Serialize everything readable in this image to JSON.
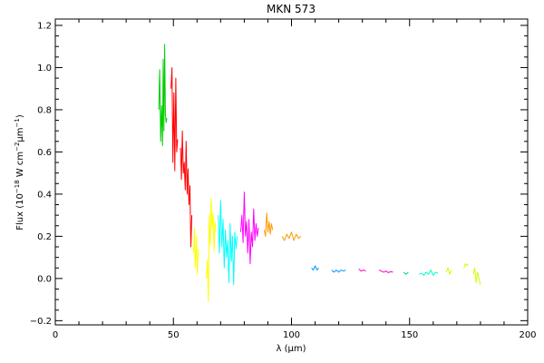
{
  "chart_data": {
    "type": "line",
    "title": "MKN 573",
    "xlabel": "λ (μm)",
    "ylabel": {
      "prefix": "Flux (10",
      "exp1": "−18",
      "mid": " W cm",
      "exp2": "−2",
      "mid2": "μm",
      "exp3": "−1",
      "suffix": ")"
    },
    "xlim": [
      0,
      200
    ],
    "ylim": [
      -0.22,
      1.23
    ],
    "xticks": [
      0,
      50,
      100,
      150,
      200
    ],
    "yticks": [
      -0.2,
      0.0,
      0.2,
      0.4,
      0.6,
      0.8,
      1.0,
      1.2
    ],
    "xtick_labels": [
      "0",
      "50",
      "100",
      "150",
      "200"
    ],
    "ytick_labels": [
      "−0.2",
      "0.0",
      "0.2",
      "0.4",
      "0.6",
      "0.8",
      "1.0",
      "1.2"
    ],
    "grid": false,
    "series": [
      {
        "color": "#00cc00",
        "x": [
          43.8,
          44.2,
          44.6,
          45.0,
          45.4,
          45.7,
          46.0,
          46.3,
          46.6,
          46.9,
          47.2
        ],
        "y": [
          0.8,
          0.99,
          0.65,
          0.82,
          0.63,
          1.04,
          0.7,
          1.11,
          0.78,
          0.74,
          0.76
        ]
      },
      {
        "color": "#ff0000",
        "x": [
          49.0,
          49.4,
          49.8,
          50.2,
          50.6,
          51.0,
          51.4,
          51.8
        ],
        "y": [
          0.9,
          1.0,
          0.55,
          0.88,
          0.51,
          0.95,
          0.6,
          0.66
        ]
      },
      {
        "color": "#ff0000",
        "x": [
          53.0,
          53.4,
          53.8,
          54.2,
          54.6,
          55.0,
          55.4,
          55.8,
          56.2,
          56.6,
          57.0,
          57.4,
          57.8
        ],
        "y": [
          0.62,
          0.47,
          0.7,
          0.5,
          0.55,
          0.42,
          0.65,
          0.4,
          0.52,
          0.35,
          0.44,
          0.15,
          0.3
        ]
      },
      {
        "color": "#ffff00",
        "x": [
          58.5,
          58.9,
          59.3,
          59.7,
          60.1,
          60.5
        ],
        "y": [
          0.12,
          0.24,
          0.05,
          0.2,
          0.02,
          0.14
        ]
      },
      {
        "color": "#ffff00",
        "x": [
          64.0,
          64.4,
          64.8,
          65.2,
          65.6,
          66.0,
          66.4,
          66.8,
          67.2,
          67.6,
          68.0
        ],
        "y": [
          0.0,
          0.09,
          -0.11,
          0.3,
          0.16,
          0.38,
          0.24,
          0.31,
          0.13,
          0.27,
          0.22
        ]
      },
      {
        "color": "#00ffff",
        "x": [
          69.0,
          69.5,
          70.0,
          70.5,
          71.0,
          71.5,
          72.0,
          72.5,
          73.0,
          73.5,
          74.0,
          74.5,
          75.0,
          75.5,
          76.0,
          76.5,
          77.0
        ],
        "y": [
          0.3,
          0.12,
          0.37,
          0.15,
          0.28,
          0.05,
          0.23,
          0.1,
          0.18,
          -0.02,
          0.26,
          0.08,
          0.2,
          -0.03,
          0.22,
          0.14,
          0.2
        ]
      },
      {
        "color": "#ff00ff",
        "x": [
          78.5,
          79.0,
          79.5,
          80.0,
          80.5,
          81.0,
          81.5,
          82.0,
          82.5,
          83.0,
          83.5,
          84.0,
          84.5,
          85.0,
          85.5,
          86.0
        ],
        "y": [
          0.22,
          0.3,
          0.17,
          0.41,
          0.2,
          0.27,
          0.12,
          0.28,
          0.07,
          0.22,
          0.15,
          0.33,
          0.18,
          0.26,
          0.2,
          0.24
        ]
      },
      {
        "color": "#ff9900",
        "x": [
          88.5,
          89.0,
          89.5,
          90.0,
          90.5,
          91.0,
          91.5,
          92.0
        ],
        "y": [
          0.23,
          0.2,
          0.31,
          0.22,
          0.27,
          0.21,
          0.26,
          0.23
        ]
      },
      {
        "color": "#ff9900",
        "x": [
          96.0,
          97.0,
          98.0,
          99.0,
          100.0,
          101.0,
          102.0,
          103.0,
          104.0
        ],
        "y": [
          0.2,
          0.18,
          0.21,
          0.19,
          0.22,
          0.18,
          0.21,
          0.19,
          0.2
        ]
      },
      {
        "color": "#0099ff",
        "x": [
          108.5,
          109.2,
          110.0,
          110.8,
          111.5
        ],
        "y": [
          0.05,
          0.04,
          0.06,
          0.04,
          0.05
        ]
      },
      {
        "color": "#0099ff",
        "x": [
          117.0,
          118.0,
          119.0,
          120.0,
          121.0,
          122.0,
          123.0
        ],
        "y": [
          0.04,
          0.03,
          0.04,
          0.03,
          0.04,
          0.035,
          0.04
        ]
      },
      {
        "color": "#ff00cc",
        "x": [
          128.5,
          129.5,
          130.5,
          131.5
        ],
        "y": [
          0.045,
          0.035,
          0.04,
          0.035
        ]
      },
      {
        "color": "#ff00cc",
        "x": [
          137.0,
          138.0,
          139.0,
          140.0,
          141.0,
          142.0,
          143.0
        ],
        "y": [
          0.04,
          0.035,
          0.03,
          0.035,
          0.028,
          0.032,
          0.03
        ]
      },
      {
        "color": "#00cc99",
        "x": [
          147.5,
          148.5,
          149.5
        ],
        "y": [
          0.03,
          0.02,
          0.03
        ]
      },
      {
        "color": "#00ffcc",
        "x": [
          154.0,
          155.0,
          156.0,
          157.0,
          158.0,
          159.0,
          160.0,
          161.0,
          162.0
        ],
        "y": [
          0.02,
          0.025,
          0.015,
          0.03,
          0.02,
          0.04,
          0.015,
          0.03,
          0.025
        ]
      },
      {
        "color": "#ccff00",
        "x": [
          165.5,
          166.3,
          167.0,
          167.7
        ],
        "y": [
          0.03,
          0.05,
          0.02,
          0.04
        ]
      },
      {
        "color": "#ccff00",
        "x": [
          173.0,
          173.6,
          174.2,
          174.8
        ],
        "y": [
          0.05,
          0.07,
          0.06,
          0.07
        ]
      },
      {
        "color": "#ccff00",
        "x": [
          177.0,
          177.6,
          178.2,
          178.8,
          179.4,
          180.0
        ],
        "y": [
          0.02,
          0.05,
          -0.02,
          0.03,
          0.0,
          -0.03
        ]
      }
    ]
  }
}
